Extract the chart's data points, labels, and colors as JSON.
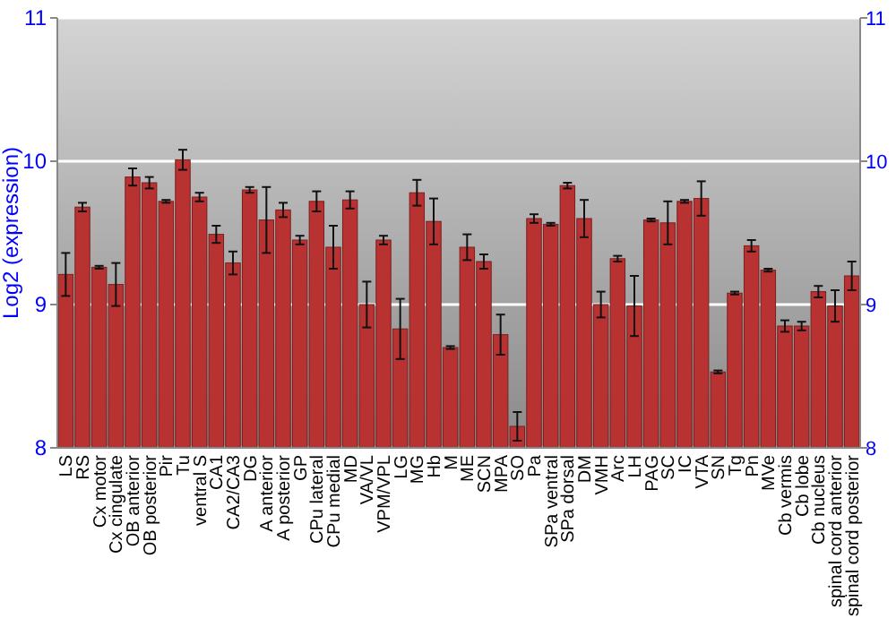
{
  "chart_data": {
    "type": "bar",
    "ylabel": "Log2 (expression)",
    "categories": [
      "LS",
      "RS",
      "Cx motor",
      "Cx cingulate",
      "OB anterior",
      "OB posterior",
      "Pir",
      "Tu",
      "ventral S",
      "CA1",
      "CA2/CA3",
      "DG",
      "A anterior",
      "A posterior",
      "GP",
      "CPu lateral",
      "CPu medial",
      "MD",
      "VA/VL",
      "VPM/VPL",
      "LG",
      "MG",
      "Hb",
      "M",
      "ME",
      "SCN",
      "MPA",
      "SO",
      "Pa",
      "SPa ventral",
      "SPa dorsal",
      "DM",
      "VMH",
      "Arc",
      "LH",
      "PAG",
      "SC",
      "IC",
      "VTA",
      "SN",
      "Tg",
      "Pn",
      "MVe",
      "Cb vermis",
      "Cb lobe",
      "Cb nucleus",
      "spinal cord anterior",
      "spinal cord posterior"
    ],
    "values": [
      9.21,
      9.68,
      9.26,
      9.14,
      9.89,
      9.85,
      9.72,
      10.01,
      9.75,
      9.49,
      9.29,
      9.8,
      9.59,
      9.66,
      9.45,
      9.72,
      9.4,
      9.73,
      9.0,
      9.45,
      8.83,
      9.78,
      9.58,
      8.7,
      9.4,
      9.3,
      8.79,
      8.15,
      9.6,
      9.56,
      9.83,
      9.6,
      9.0,
      9.32,
      8.99,
      9.59,
      9.57,
      9.72,
      9.74,
      8.53,
      9.08,
      9.41,
      9.24,
      8.85,
      8.85,
      9.09,
      8.99,
      9.2
    ],
    "errors": [
      0.15,
      0.03,
      0.01,
      0.15,
      0.06,
      0.04,
      0.01,
      0.07,
      0.03,
      0.06,
      0.08,
      0.02,
      0.23,
      0.05,
      0.03,
      0.07,
      0.15,
      0.06,
      0.16,
      0.03,
      0.21,
      0.09,
      0.16,
      0.01,
      0.09,
      0.05,
      0.14,
      0.1,
      0.03,
      0.01,
      0.02,
      0.13,
      0.09,
      0.02,
      0.21,
      0.01,
      0.15,
      0.01,
      0.12,
      0.01,
      0.01,
      0.04,
      0.01,
      0.04,
      0.03,
      0.04,
      0.11,
      0.1
    ],
    "color": "#b93232",
    "ylim": [
      8,
      11
    ],
    "yticks": [
      8,
      9,
      10,
      11
    ],
    "y2lim": [
      8,
      11
    ],
    "y2ticks": [
      8,
      9,
      10,
      11
    ],
    "grid": "y"
  }
}
